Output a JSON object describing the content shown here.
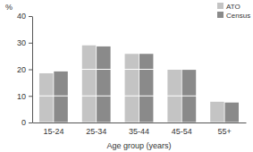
{
  "chart_data": {
    "type": "bar",
    "y_label": "%",
    "x_label": "Age group (years)",
    "categories": [
      "15-24",
      "25-34",
      "35-44",
      "45-54",
      "55+"
    ],
    "series": [
      {
        "name": "ATO",
        "color": "#c4c4c4",
        "values": [
          18.5,
          29,
          25.8,
          20,
          7.8
        ]
      },
      {
        "name": "Census",
        "color": "#8a8a8a",
        "values": [
          19.2,
          28.6,
          25.8,
          19.8,
          7.5
        ]
      }
    ],
    "ylim": [
      0,
      40
    ],
    "yticks": [
      0,
      10,
      20,
      30,
      40
    ],
    "grid": true,
    "legend": "top-right"
  }
}
